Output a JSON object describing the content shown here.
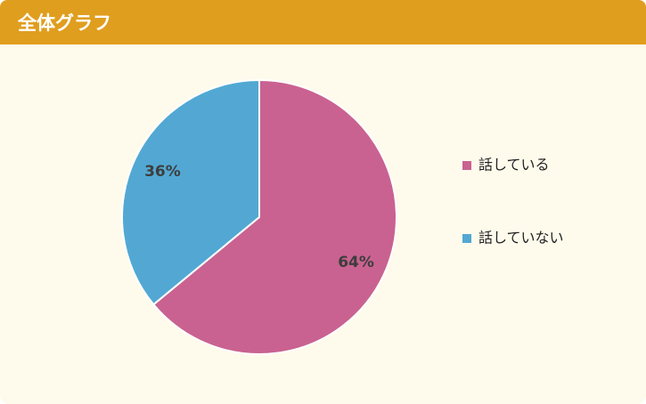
{
  "chart_data": {
    "type": "pie",
    "title": "全体グラフ",
    "categories": [
      "話している",
      "話していない"
    ],
    "values": [
      64,
      36
    ],
    "value_labels": [
      "64%",
      "36%"
    ],
    "colors": [
      "#c96290",
      "#52a8d3"
    ]
  }
}
